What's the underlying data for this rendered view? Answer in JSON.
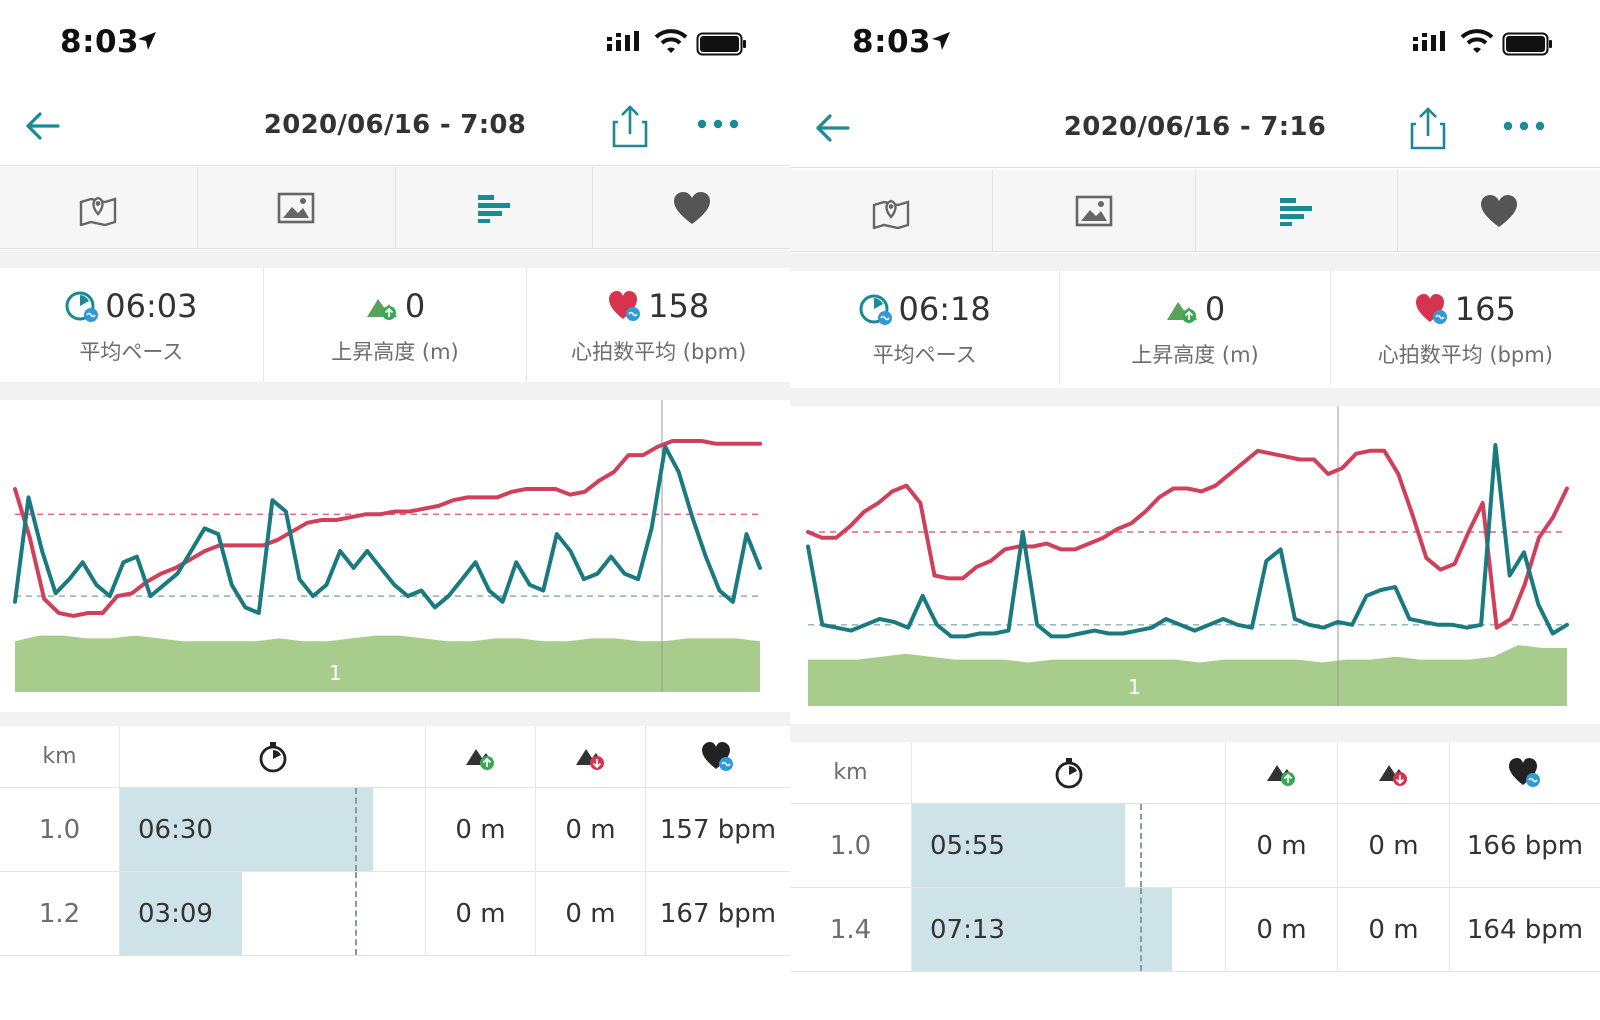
{
  "screens": [
    {
      "status_time": "8:03",
      "title": "2020/06/16 - 7:08",
      "summary": {
        "pace_value": "06:03",
        "pace_label": "平均ペース",
        "ascent_value": "0",
        "ascent_label": "上昇高度 (m)",
        "hr_value": "158",
        "hr_label": "心拍数平均 (bpm)"
      },
      "chart_data": {
        "type": "line",
        "title": "",
        "lap_label": "1",
        "series": [
          {
            "name": "",
            "color": "#d0405a",
            "values": [
              0.72,
              0.55,
              0.33,
              0.28,
              0.27,
              0.28,
              0.28,
              0.34,
              0.35,
              0.39,
              0.42,
              0.44,
              0.47,
              0.5,
              0.52,
              0.52,
              0.52,
              0.52,
              0.54,
              0.57,
              0.6,
              0.61,
              0.61,
              0.62,
              0.63,
              0.63,
              0.64,
              0.64,
              0.65,
              0.66,
              0.68,
              0.69,
              0.69,
              0.69,
              0.71,
              0.72,
              0.72,
              0.72,
              0.7,
              0.71,
              0.75,
              0.78,
              0.84,
              0.84,
              0.87,
              0.89,
              0.89,
              0.89,
              0.88,
              0.88,
              0.88,
              0.88
            ]
          },
          {
            "name": "",
            "color": "#1a7a80",
            "values": [
              0.32,
              0.69,
              0.5,
              0.35,
              0.4,
              0.46,
              0.38,
              0.34,
              0.46,
              0.48,
              0.34,
              0.38,
              0.42,
              0.5,
              0.58,
              0.56,
              0.38,
              0.3,
              0.28,
              0.68,
              0.64,
              0.4,
              0.34,
              0.38,
              0.5,
              0.44,
              0.5,
              0.44,
              0.38,
              0.34,
              0.36,
              0.3,
              0.34,
              0.4,
              0.46,
              0.36,
              0.32,
              0.46,
              0.38,
              0.36,
              0.56,
              0.5,
              0.4,
              0.42,
              0.48,
              0.42,
              0.4,
              0.58,
              0.87,
              0.78,
              0.62,
              0.48,
              0.36,
              0.32,
              0.56,
              0.44
            ]
          },
          {
            "name": "",
            "color": "#a8cc8c",
            "type": "area",
            "values": [
              0.18,
              0.2,
              0.2,
              0.19,
              0.19,
              0.2,
              0.19,
              0.18,
              0.18,
              0.18,
              0.18,
              0.19,
              0.18,
              0.18,
              0.19,
              0.2,
              0.2,
              0.19,
              0.18,
              0.18,
              0.19,
              0.19,
              0.18,
              0.18,
              0.19,
              0.19,
              0.18,
              0.18,
              0.19,
              0.19,
              0.19,
              0.18
            ]
          }
        ],
        "dashed_refs": [
          {
            "color": "#d0405a",
            "value": 0.63
          },
          {
            "color": "#6e9da3",
            "value": 0.34
          }
        ]
      },
      "table": {
        "head": {
          "km": "km"
        },
        "rows": [
          {
            "km": "1.0",
            "pace": "06:30",
            "pace_ratio": 0.83,
            "ascent": "0 m",
            "descent": "0 m",
            "hr": "157 bpm"
          },
          {
            "km": "1.2",
            "pace": "03:09",
            "pace_ratio": 0.4,
            "ascent": "0 m",
            "descent": "0 m",
            "hr": "167 bpm"
          }
        ],
        "ref_ratio": 0.77
      }
    },
    {
      "status_time": "8:03",
      "title": "2020/06/16 - 7:16",
      "summary": {
        "pace_value": "06:18",
        "pace_label": "平均ペース",
        "ascent_value": "0",
        "ascent_label": "上昇高度 (m)",
        "hr_value": "165",
        "hr_label": "心拍数平均 (bpm)"
      },
      "chart_data": {
        "type": "line",
        "title": "",
        "lap_label": "1",
        "series": [
          {
            "name": "",
            "color": "#d0405a",
            "values": [
              0.6,
              0.58,
              0.58,
              0.62,
              0.67,
              0.7,
              0.74,
              0.76,
              0.7,
              0.45,
              0.44,
              0.44,
              0.48,
              0.5,
              0.54,
              0.55,
              0.55,
              0.56,
              0.54,
              0.54,
              0.56,
              0.58,
              0.61,
              0.63,
              0.67,
              0.72,
              0.75,
              0.75,
              0.74,
              0.76,
              0.8,
              0.84,
              0.88,
              0.87,
              0.86,
              0.85,
              0.85,
              0.8,
              0.82,
              0.87,
              0.88,
              0.88,
              0.8,
              0.66,
              0.51,
              0.47,
              0.49,
              0.6,
              0.7,
              0.27,
              0.3,
              0.42,
              0.58,
              0.65,
              0.75
            ]
          },
          {
            "name": "",
            "color": "#1a7a80",
            "values": [
              0.55,
              0.28,
              0.27,
              0.26,
              0.28,
              0.3,
              0.29,
              0.27,
              0.38,
              0.28,
              0.24,
              0.24,
              0.25,
              0.25,
              0.26,
              0.6,
              0.28,
              0.24,
              0.24,
              0.25,
              0.26,
              0.25,
              0.25,
              0.26,
              0.27,
              0.3,
              0.28,
              0.26,
              0.28,
              0.3,
              0.28,
              0.27,
              0.5,
              0.54,
              0.3,
              0.28,
              0.27,
              0.29,
              0.28,
              0.38,
              0.4,
              0.41,
              0.3,
              0.29,
              0.28,
              0.28,
              0.27,
              0.28,
              0.9,
              0.45,
              0.53,
              0.35,
              0.25,
              0.28
            ]
          },
          {
            "name": "",
            "color": "#a8cc8c",
            "type": "area",
            "values": [
              0.16,
              0.16,
              0.16,
              0.17,
              0.18,
              0.17,
              0.16,
              0.16,
              0.16,
              0.15,
              0.16,
              0.16,
              0.16,
              0.16,
              0.16,
              0.16,
              0.15,
              0.16,
              0.16,
              0.16,
              0.16,
              0.15,
              0.16,
              0.16,
              0.17,
              0.16,
              0.16,
              0.16,
              0.17,
              0.21,
              0.2,
              0.2
            ]
          }
        ],
        "dashed_refs": [
          {
            "color": "#d0405a",
            "value": 0.6
          },
          {
            "color": "#6e9da3",
            "value": 0.28
          }
        ]
      },
      "table": {
        "head": {
          "km": "km"
        },
        "rows": [
          {
            "km": "1.0",
            "pace": "05:55",
            "pace_ratio": 0.68,
            "ascent": "0 m",
            "descent": "0 m",
            "hr": "166 bpm"
          },
          {
            "km": "1.4",
            "pace": "07:13",
            "pace_ratio": 0.83,
            "ascent": "0 m",
            "descent": "0 m",
            "hr": "164 bpm"
          }
        ],
        "ref_ratio": 0.73
      }
    }
  ],
  "icons": {
    "tabs": [
      "map-icon",
      "photo-icon",
      "laps-chart-icon",
      "heart-icon"
    ],
    "accent": "#1a8a94",
    "heart_color": "#d7334f"
  }
}
